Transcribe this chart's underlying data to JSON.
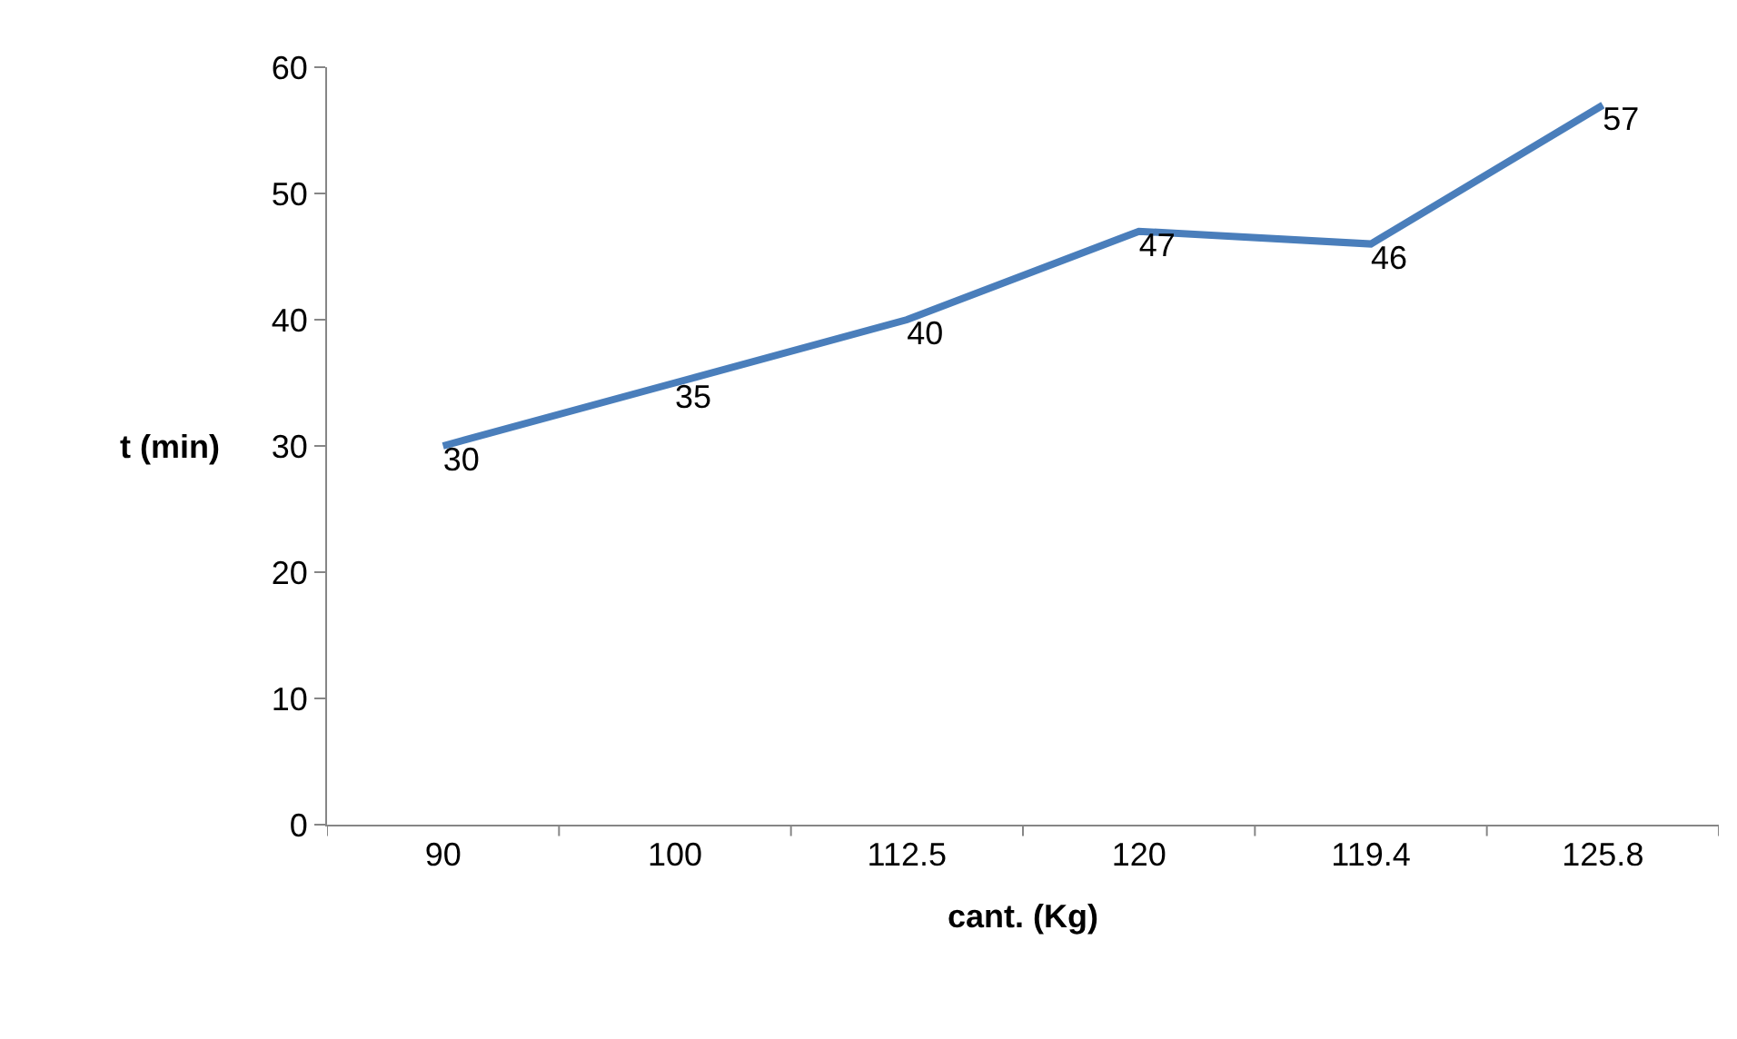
{
  "chart_data": {
    "type": "line",
    "xlabel": "cant. (Kg)",
    "ylabel": "t (min)",
    "categories": [
      "90",
      "100",
      "112.5",
      "120",
      "119.4",
      "125.8"
    ],
    "series": [
      {
        "color": "#4a7ebb",
        "values": [
          30,
          35,
          40,
          47,
          46,
          57
        ]
      }
    ],
    "ylim": [
      0,
      60
    ],
    "yticks": [
      0,
      10,
      20,
      30,
      40,
      50,
      60
    ],
    "data_labels": true,
    "marker": "none",
    "line_style": "solid"
  }
}
